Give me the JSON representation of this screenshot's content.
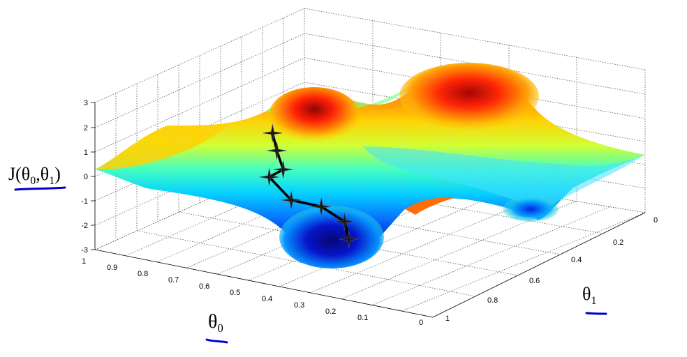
{
  "chart_data": {
    "type": "surface",
    "title": "",
    "zlabel": "J(θ0,θ1)",
    "xlabel": "θ0",
    "ylabel": "θ1",
    "zlim": [
      -3,
      3
    ],
    "xlim": [
      0,
      1
    ],
    "ylim": [
      0,
      1
    ],
    "grid": true,
    "colormap": "jet",
    "z_ticks": [
      "3",
      "2",
      "1",
      "0",
      "-1",
      "-2",
      "-3"
    ],
    "z_tick_values": [
      3,
      2,
      1,
      0,
      -1,
      -2,
      -3
    ],
    "theta0_ticks": [
      "1",
      "0.9",
      "0.8",
      "0.7",
      "0.6",
      "0.5",
      "0.4",
      "0.3",
      "0.2",
      "0.1",
      "0"
    ],
    "theta0_tick_values": [
      1,
      0.9,
      0.8,
      0.7,
      0.6,
      0.5,
      0.4,
      0.3,
      0.2,
      0.1,
      0
    ],
    "theta1_ticks": [
      "0",
      "0.2",
      "0.4",
      "0.6",
      "0.8",
      "1"
    ],
    "theta1_tick_values": [
      0,
      0.2,
      0.4,
      0.6,
      0.8,
      1
    ],
    "descent_path": [
      {
        "theta0": 0.6,
        "theta1": 0.2,
        "J": 2.0
      },
      {
        "theta0": 0.6,
        "theta1": 0.22,
        "J": 1.2
      },
      {
        "theta0": 0.6,
        "theta1": 0.25,
        "J": 0.3
      },
      {
        "theta0": 0.66,
        "theta1": 0.28,
        "J": -0.3
      },
      {
        "theta0": 0.62,
        "theta1": 0.32,
        "J": -1.3
      },
      {
        "theta0": 0.55,
        "theta1": 0.35,
        "J": -1.5
      },
      {
        "theta0": 0.5,
        "theta1": 0.38,
        "J": -2.1
      },
      {
        "theta0": 0.5,
        "theta1": 0.4,
        "J": -2.9
      }
    ],
    "colors": {
      "grid": "#666666",
      "path": "#000000",
      "annotation_underline": "#0000cc"
    }
  }
}
